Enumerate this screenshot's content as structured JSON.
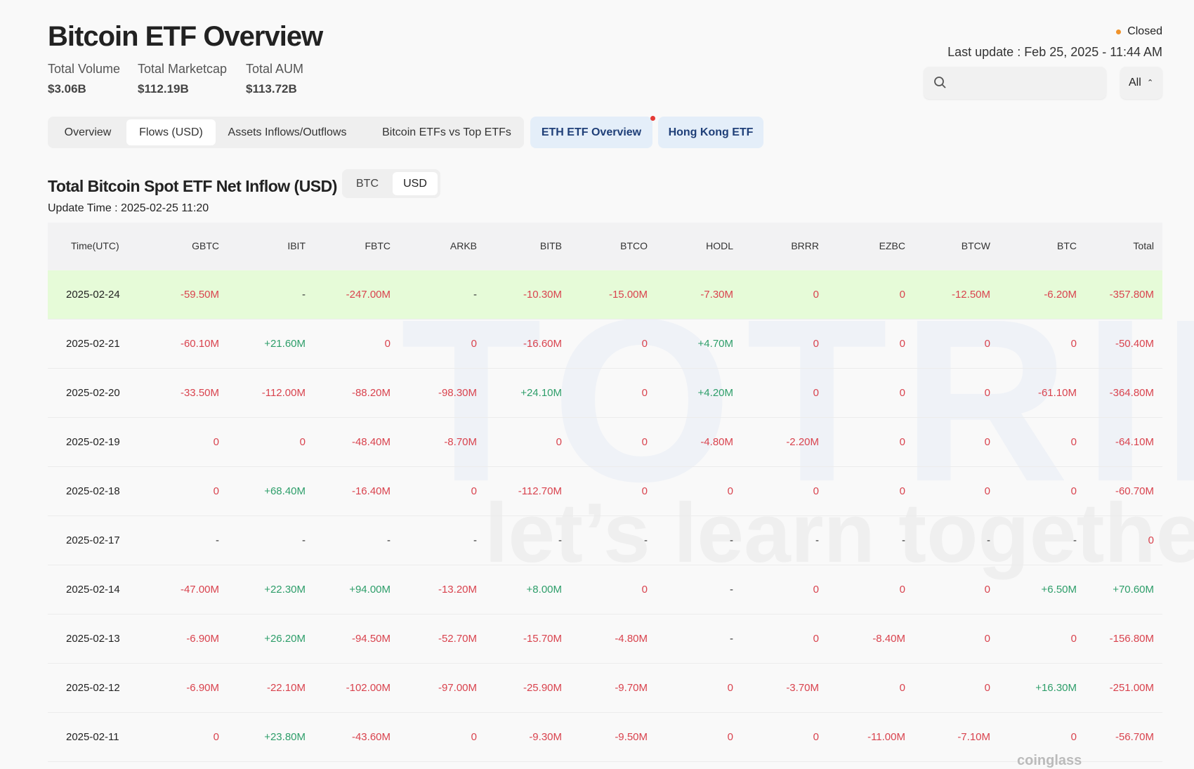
{
  "header": {
    "title": "Bitcoin ETF Overview",
    "stats": [
      {
        "label": "Total Volume",
        "value": "$3.06B"
      },
      {
        "label": "Total Marketcap",
        "value": "$112.19B"
      },
      {
        "label": "Total AUM",
        "value": "$113.72B"
      }
    ],
    "status": "Closed",
    "last_update": "Last update : Feb 25, 2025 - 11:44 AM",
    "select": "All"
  },
  "tabs": [
    "Overview",
    "Flows (USD)",
    "Assets Inflows/Outflows",
    "Bitcoin ETFs vs Top ETFs"
  ],
  "highlight_tabs": [
    "ETH ETF Overview",
    "Hong Kong ETF"
  ],
  "section": {
    "title": "Total Bitcoin Spot ETF Net Inflow (USD)",
    "toggle": [
      "BTC",
      "USD"
    ],
    "update_time": "Update Time : 2025-02-25 11:20"
  },
  "table": {
    "columns": [
      "Time(UTC)",
      "GBTC",
      "IBIT",
      "FBTC",
      "ARKB",
      "BITB",
      "BTCO",
      "HODL",
      "BRRR",
      "EZBC",
      "BTCW",
      "BTC",
      "Total"
    ],
    "rows": [
      [
        "2025-02-24",
        "-59.50M",
        "-",
        "-247.00M",
        "-",
        "-10.30M",
        "-15.00M",
        "-7.30M",
        "0",
        "0",
        "-12.50M",
        "-6.20M",
        "-357.80M"
      ],
      [
        "2025-02-21",
        "-60.10M",
        "+21.60M",
        "0",
        "0",
        "-16.60M",
        "0",
        "+4.70M",
        "0",
        "0",
        "0",
        "0",
        "-50.40M"
      ],
      [
        "2025-02-20",
        "-33.50M",
        "-112.00M",
        "-88.20M",
        "-98.30M",
        "+24.10M",
        "0",
        "+4.20M",
        "0",
        "0",
        "0",
        "-61.10M",
        "-364.80M"
      ],
      [
        "2025-02-19",
        "0",
        "0",
        "-48.40M",
        "-8.70M",
        "0",
        "0",
        "-4.80M",
        "-2.20M",
        "0",
        "0",
        "0",
        "-64.10M"
      ],
      [
        "2025-02-18",
        "0",
        "+68.40M",
        "-16.40M",
        "0",
        "-112.70M",
        "0",
        "0",
        "0",
        "0",
        "0",
        "0",
        "-60.70M"
      ],
      [
        "2025-02-17",
        "-",
        "-",
        "-",
        "-",
        "-",
        "-",
        "-",
        "-",
        "-",
        "-",
        "-",
        "0"
      ],
      [
        "2025-02-14",
        "-47.00M",
        "+22.30M",
        "+94.00M",
        "-13.20M",
        "+8.00M",
        "0",
        "-",
        "0",
        "0",
        "0",
        "+6.50M",
        "+70.60M"
      ],
      [
        "2025-02-13",
        "-6.90M",
        "+26.20M",
        "-94.50M",
        "-52.70M",
        "-15.70M",
        "-4.80M",
        "-",
        "0",
        "-8.40M",
        "0",
        "0",
        "-156.80M"
      ],
      [
        "2025-02-12",
        "-6.90M",
        "-22.10M",
        "-102.00M",
        "-97.00M",
        "-25.90M",
        "-9.70M",
        "0",
        "-3.70M",
        "0",
        "0",
        "+16.30M",
        "-251.00M"
      ],
      [
        "2025-02-11",
        "0",
        "+23.80M",
        "-43.60M",
        "0",
        "-9.30M",
        "-9.50M",
        "0",
        "0",
        "-11.00M",
        "-7.10M",
        "0",
        "-56.70M"
      ]
    ]
  },
  "watermark": {
    "brand": "TOTRIEU",
    "slogan": "let’s learn together"
  },
  "footer_logo": "coinglass"
}
